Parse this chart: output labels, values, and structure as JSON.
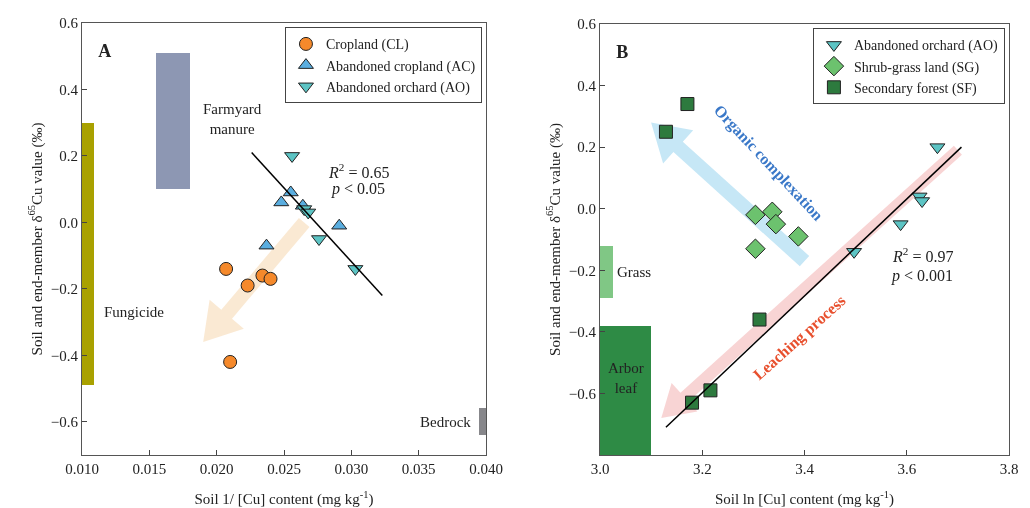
{
  "chart_data": [
    {
      "type": "scatter",
      "title": "A",
      "xlabel": "Soil 1/ [Cu] content (mg kg$^{-1}$)",
      "ylabel": "Soil and end-member δ$^{65}$Cu value (‰)",
      "xlim": [
        0.01,
        0.04
      ],
      "xticks": [
        {
          "value": 0.01,
          "label": "0.010"
        },
        0.015,
        {
          "value": 0.02,
          "label": "0.020"
        },
        0.025,
        {
          "value": 0.03,
          "label": "0.030"
        },
        0.035,
        {
          "value": 0.04,
          "label": "0.040"
        }
      ],
      "ylim": [
        -0.7,
        0.6
      ],
      "yticks": [
        {
          "value": -0.6,
          "label": "−0.6"
        },
        {
          "value": -0.4,
          "label": "−0.4"
        },
        {
          "value": -0.2,
          "label": "−0.2"
        },
        {
          "value": 0,
          "label": "0.0"
        },
        0.2,
        0.4,
        0.6
      ],
      "grid": false,
      "legend": "top right",
      "series": [
        {
          "type": "bar",
          "name": "Fungicide",
          "color": "#a9a100",
          "x": [
            0.01045
          ],
          "base": [
            -0.49
          ],
          "values": [
            0.79
          ]
        },
        {
          "type": "bar",
          "name": "Farmyard\nmanure",
          "color": "#8d97b3",
          "x": [
            0.01675
          ],
          "base": [
            0.1
          ],
          "values": [
            0.41
          ]
        },
        {
          "type": "bar",
          "name": "Bedrock",
          "color": "#87878b",
          "x": [
            0.03975
          ],
          "base": [
            -0.64
          ],
          "values": [
            0.08
          ]
        },
        {
          "name": "Cropland (CL)",
          "color": "#f5892b",
          "marker": "circle",
          "x": [
            0.0207,
            0.0223,
            0.0234,
            0.024,
            0.021
          ],
          "values": [
            -0.14,
            -0.19,
            -0.16,
            -0.17,
            -0.42
          ]
        },
        {
          "name": "Abandoned cropland (AC)",
          "color": "#5aaee0",
          "marker": "triangle",
          "x": [
            0.0255,
            0.0248,
            0.0264,
            0.0291,
            0.0237
          ],
          "values": [
            0.09,
            0.06,
            0.05,
            -0.01,
            -0.07
          ]
        },
        {
          "name": "Abandoned orchard (AO)",
          "color": "#5cc4c4",
          "marker": "triangle-down",
          "x": [
            0.0256,
            0.0265,
            0.0268,
            0.0276,
            0.0303
          ],
          "values": [
            0.2,
            0.04,
            0.03,
            -0.05,
            -0.14
          ]
        },
        {
          "type": "line",
          "color": "#000000",
          "marker": "none",
          "x": [
            0.0226,
            0.0323
          ],
          "values": [
            0.21,
            -0.22
          ]
        }
      ],
      "annotations": [
        "R$^{2}$ = 0.65",
        "p < 0.05"
      ]
    },
    {
      "type": "scatter",
      "title": "B",
      "xlabel": "Soil ln [Cu] content (mg kg$^{-1}$)",
      "ylabel": "Soil and end-member δ$^{65}$Cu value (‰)",
      "xlim": [
        3.0,
        3.8
      ],
      "xticks": [
        {
          "value": 3.0,
          "label": "3.0"
        },
        3.2,
        3.4,
        3.6,
        3.8
      ],
      "ylim": [
        -0.8,
        0.6
      ],
      "yticks": [
        {
          "value": -0.6,
          "label": "−0.6"
        },
        {
          "value": -0.4,
          "label": "−0.4"
        },
        {
          "value": -0.2,
          "label": "−0.2"
        },
        {
          "value": 0,
          "label": "0.0"
        },
        0.2,
        0.4,
        0.6
      ],
      "grid": false,
      "legend": "top right",
      "series": [
        {
          "type": "bar",
          "name": "Grass",
          "color": "#80c785",
          "x": [
            3.0125
          ],
          "base": [
            -0.29
          ],
          "values": [
            0.17
          ]
        },
        {
          "type": "bar",
          "name": "Arbor\nleaf",
          "color": "#2e8b45",
          "x": [
            3.05
          ],
          "base": [
            -0.8
          ],
          "values": [
            0.42
          ]
        },
        {
          "name": "Abandoned orchard (AO)",
          "color": "#5cc4c4",
          "marker": "triangle-down",
          "x": [
            3.66,
            3.625,
            3.63,
            3.588,
            3.497
          ],
          "values": [
            0.2,
            0.04,
            0.025,
            -0.05,
            -0.14
          ]
        },
        {
          "name": "Shrub-grass land (SG)",
          "color": "#6cc26e",
          "marker": "diamond",
          "x": [
            3.304,
            3.337,
            3.344,
            3.388,
            3.304
          ],
          "values": [
            -0.02,
            -0.01,
            -0.05,
            -0.09,
            -0.13
          ]
        },
        {
          "name": "Secondary forest (SF)",
          "color": "#2d7a3e",
          "marker": "square",
          "x": [
            3.171,
            3.129,
            3.312,
            3.216,
            3.18
          ],
          "values": [
            0.34,
            0.25,
            -0.36,
            -0.59,
            -0.63
          ]
        },
        {
          "type": "line",
          "color": "#000000",
          "marker": "none",
          "x": [
            3.129,
            3.707
          ],
          "values": [
            -0.71,
            0.2
          ]
        }
      ],
      "annotations": [
        "R$^{2}$ = 0.97",
        "p < 0.001",
        "Organic complexation",
        "Leaching process"
      ]
    }
  ]
}
